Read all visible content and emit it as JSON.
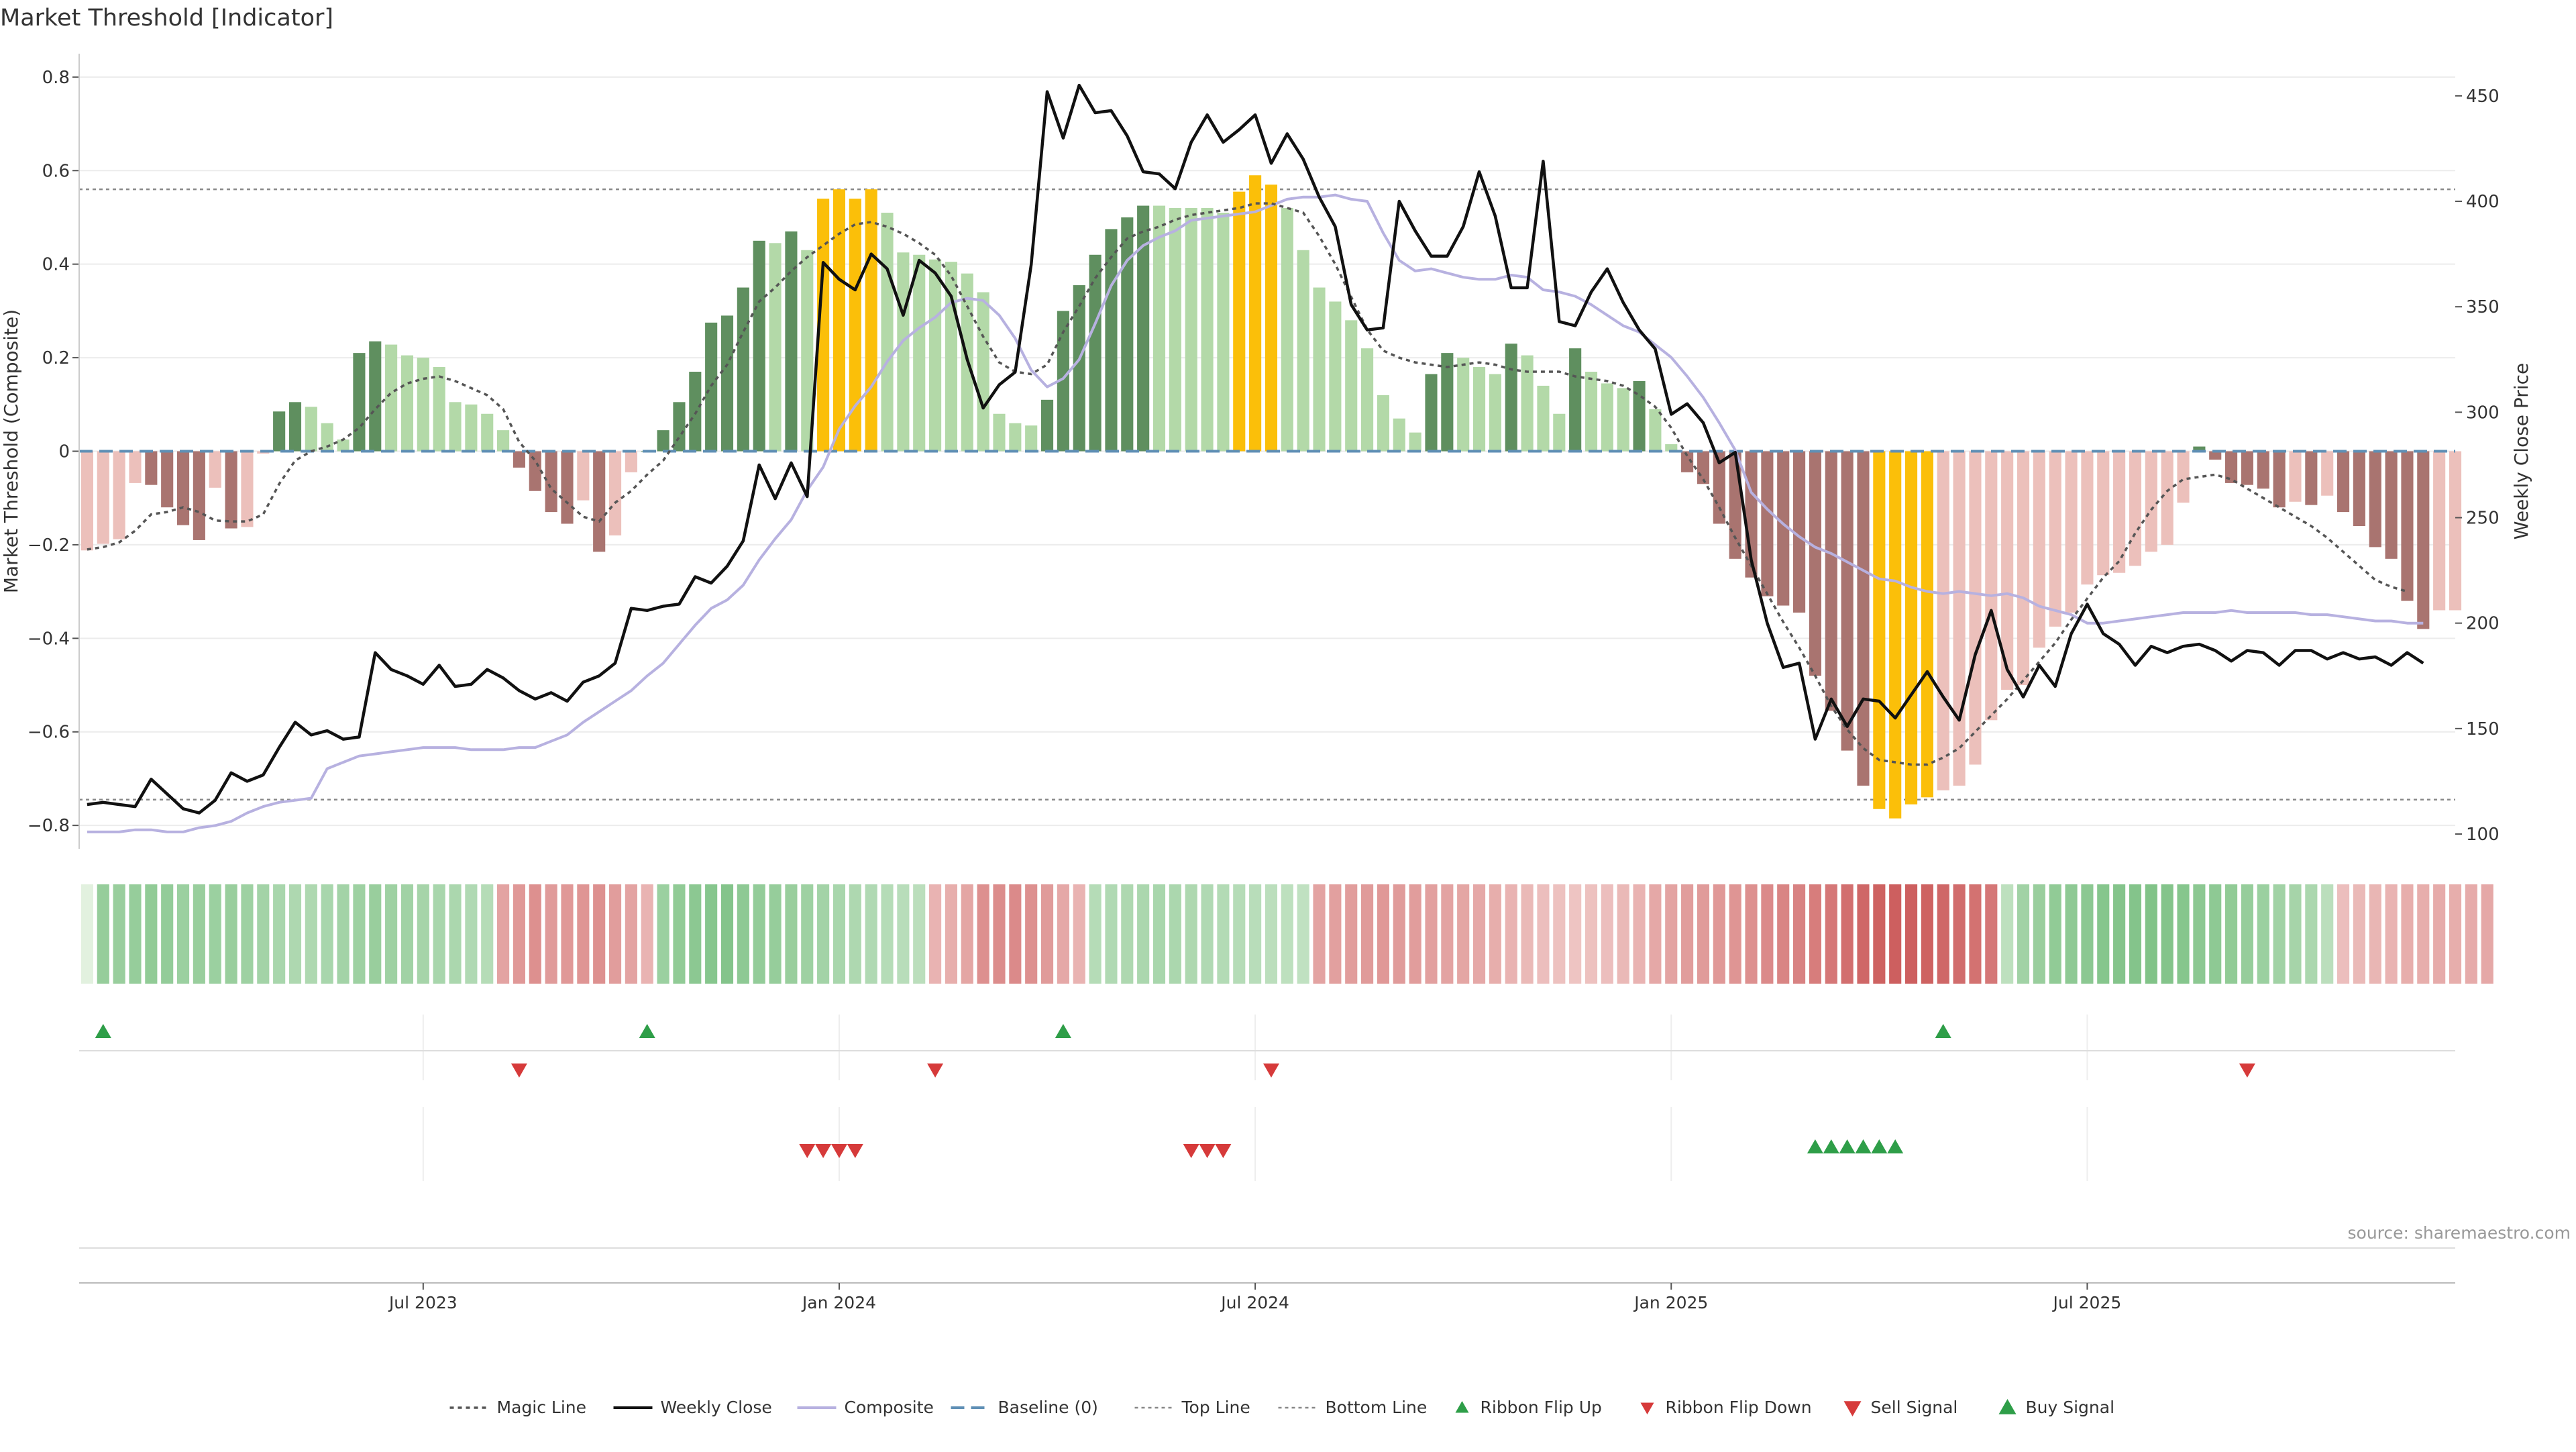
{
  "chart_data": {
    "type": "bar",
    "title": "Market Threshold [Indicator]",
    "ylabel_left": "Market Threshold (Composite)",
    "ylabel_right": "Weekly Close Price",
    "source": "source: sharemaestro.com",
    "ylim_left": [
      -0.85,
      0.85
    ],
    "ylim_right": [
      93,
      470
    ],
    "yticks_left": [
      {
        "v": 0.8,
        "label": "0.8"
      },
      {
        "v": 0.6,
        "label": "0.6"
      },
      {
        "v": 0.4,
        "label": "0.4"
      },
      {
        "v": 0.2,
        "label": "0.2"
      },
      {
        "v": 0,
        "label": "0"
      },
      {
        "v": -0.2,
        "label": "−0.2"
      },
      {
        "v": -0.4,
        "label": "−0.4"
      },
      {
        "v": -0.6,
        "label": "−0.6"
      },
      {
        "v": -0.8,
        "label": "−0.8"
      }
    ],
    "yticks_right": [
      {
        "v": 450,
        "label": "450"
      },
      {
        "v": 400,
        "label": "400"
      },
      {
        "v": 350,
        "label": "350"
      },
      {
        "v": 300,
        "label": "300"
      },
      {
        "v": 250,
        "label": "250"
      },
      {
        "v": 200,
        "label": "200"
      },
      {
        "v": 150,
        "label": "150"
      },
      {
        "v": 100,
        "label": "100"
      }
    ],
    "xticks": [
      {
        "i": 21,
        "label": "Jul 2023"
      },
      {
        "i": 47,
        "label": "Jan 2024"
      },
      {
        "i": 73,
        "label": "Jul 2024"
      },
      {
        "i": 99,
        "label": "Jan 2025"
      },
      {
        "i": 125,
        "label": "Jul 2025"
      }
    ],
    "top_line": 0.56,
    "bottom_line": -0.745,
    "composite": [
      -0.212,
      -0.198,
      -0.188,
      -0.068,
      -0.072,
      -0.12,
      -0.158,
      -0.19,
      -0.078,
      -0.165,
      -0.162,
      -0.005,
      0.085,
      0.105,
      0.095,
      0.06,
      0.025,
      0.21,
      0.235,
      0.228,
      0.205,
      0.2,
      0.18,
      0.105,
      0.1,
      0.08,
      0.045,
      -0.035,
      -0.085,
      -0.13,
      -0.155,
      -0.105,
      -0.215,
      -0.18,
      -0.045,
      0.0,
      0.045,
      0.105,
      0.17,
      0.275,
      0.29,
      0.35,
      0.45,
      0.445,
      0.47,
      0.43,
      0.54,
      0.56,
      0.54,
      0.56,
      0.51,
      0.425,
      0.42,
      0.41,
      0.405,
      0.38,
      0.34,
      0.08,
      0.06,
      0.055,
      0.11,
      0.3,
      0.355,
      0.42,
      0.475,
      0.5,
      0.525,
      0.525,
      0.52,
      0.52,
      0.52,
      0.51,
      0.555,
      0.59,
      0.57,
      0.52,
      0.43,
      0.35,
      0.32,
      0.28,
      0.22,
      0.12,
      0.07,
      0.04,
      0.165,
      0.21,
      0.2,
      0.18,
      0.165,
      0.23,
      0.205,
      0.14,
      0.08,
      0.22,
      0.17,
      0.145,
      0.135,
      0.15,
      0.09,
      0.015,
      -0.045,
      -0.07,
      -0.155,
      -0.23,
      -0.27,
      -0.31,
      -0.33,
      -0.345,
      -0.48,
      -0.555,
      -0.64,
      -0.715,
      -0.765,
      -0.785,
      -0.755,
      -0.74,
      -0.725,
      -0.715,
      -0.67,
      -0.575,
      -0.51,
      -0.5,
      -0.42,
      -0.375,
      -0.345,
      -0.285,
      -0.265,
      -0.26,
      -0.245,
      -0.215,
      -0.2,
      -0.11,
      0.01,
      -0.018,
      -0.068,
      -0.072,
      -0.08,
      -0.12,
      -0.108,
      -0.115,
      -0.095,
      -0.13,
      -0.16,
      -0.205,
      -0.23,
      -0.32,
      -0.38,
      -0.34,
      -0.34
    ],
    "magic_line": [
      -0.21,
      -0.205,
      -0.195,
      -0.17,
      -0.135,
      -0.13,
      -0.12,
      -0.13,
      -0.148,
      -0.15,
      -0.15,
      -0.135,
      -0.07,
      -0.02,
      0.0,
      0.01,
      0.025,
      0.05,
      0.09,
      0.125,
      0.145,
      0.155,
      0.16,
      0.15,
      0.135,
      0.12,
      0.09,
      0.02,
      -0.02,
      -0.08,
      -0.11,
      -0.14,
      -0.15,
      -0.11,
      -0.085,
      -0.05,
      -0.02,
      0.03,
      0.08,
      0.14,
      0.185,
      0.255,
      0.32,
      0.35,
      0.385,
      0.415,
      0.44,
      0.465,
      0.485,
      0.49,
      0.48,
      0.465,
      0.445,
      0.42,
      0.375,
      0.31,
      0.245,
      0.19,
      0.17,
      0.165,
      0.185,
      0.255,
      0.31,
      0.37,
      0.415,
      0.455,
      0.47,
      0.48,
      0.495,
      0.505,
      0.51,
      0.515,
      0.52,
      0.53,
      0.53,
      0.52,
      0.51,
      0.46,
      0.4,
      0.33,
      0.26,
      0.215,
      0.2,
      0.19,
      0.185,
      0.18,
      0.185,
      0.19,
      0.185,
      0.175,
      0.17,
      0.17,
      0.17,
      0.16,
      0.155,
      0.15,
      0.14,
      0.12,
      0.095,
      0.05,
      -0.01,
      -0.06,
      -0.12,
      -0.185,
      -0.245,
      -0.305,
      -0.365,
      -0.42,
      -0.48,
      -0.545,
      -0.595,
      -0.635,
      -0.66,
      -0.665,
      -0.67,
      -0.67,
      -0.655,
      -0.635,
      -0.6,
      -0.565,
      -0.53,
      -0.49,
      -0.45,
      -0.41,
      -0.36,
      -0.315,
      -0.27,
      -0.235,
      -0.175,
      -0.125,
      -0.085,
      -0.06,
      -0.055,
      -0.05,
      -0.06,
      -0.08,
      -0.1,
      -0.12,
      -0.14,
      -0.16,
      -0.185,
      -0.215,
      -0.245,
      -0.275,
      -0.29,
      -0.3
    ],
    "composite_line": [
      101,
      101,
      101,
      102,
      102,
      101,
      101,
      103,
      104,
      106,
      110,
      113,
      115,
      116,
      117,
      131,
      134,
      137,
      138,
      139,
      140,
      141,
      141,
      141,
      140,
      140,
      140,
      141,
      141,
      144,
      147,
      153,
      158,
      163,
      168,
      175,
      181,
      190,
      199,
      207,
      211,
      218,
      230,
      240,
      249,
      263,
      274,
      292,
      303,
      312,
      324,
      334,
      340,
      345,
      352,
      354,
      353,
      346,
      335,
      320,
      312,
      316,
      325,
      342,
      360,
      372,
      379,
      383,
      386,
      391,
      392,
      393,
      394,
      395,
      398,
      401,
      402,
      402,
      403,
      401,
      400,
      385,
      372,
      367,
      368,
      366,
      364,
      363,
      363,
      365,
      364,
      358,
      357,
      355,
      351,
      346,
      341,
      338,
      332,
      326,
      317,
      307,
      295,
      282,
      262,
      254,
      247,
      241,
      236,
      233,
      229,
      225,
      221,
      220,
      217,
      215,
      214,
      215,
      214,
      213,
      214,
      212,
      208,
      206,
      204,
      200,
      200,
      201,
      202,
      203,
      204,
      205,
      205,
      205,
      206,
      205,
      205,
      205,
      205,
      204,
      204,
      203,
      202,
      201,
      201,
      200,
      200
    ],
    "weekly_close": [
      114,
      115,
      114,
      113,
      126,
      119,
      112,
      110,
      116,
      129,
      125,
      128,
      141,
      153,
      147,
      149,
      145,
      146,
      186,
      178,
      175,
      171,
      180,
      170,
      171,
      178,
      174,
      168,
      164,
      167,
      163,
      172,
      175,
      181,
      207,
      206,
      208,
      209,
      222,
      219,
      227,
      239,
      275,
      259,
      276,
      260,
      371,
      363,
      358,
      375,
      368,
      346,
      372,
      366,
      355,
      325,
      302,
      313,
      319,
      370,
      452,
      430,
      455,
      442,
      443,
      431,
      414,
      413,
      406,
      428,
      441,
      428,
      434,
      441,
      418,
      432,
      420,
      402,
      388,
      351,
      339,
      340,
      400,
      386,
      374,
      374,
      388,
      414,
      393,
      359,
      359,
      419,
      343,
      341,
      357,
      368,
      352,
      339,
      330,
      299,
      304,
      295,
      276,
      281,
      230,
      200,
      179,
      181,
      145,
      164,
      151,
      164,
      163,
      155,
      166,
      177,
      165,
      154,
      185,
      206,
      178,
      165,
      180,
      170,
      195,
      209,
      195,
      190,
      180,
      189,
      186,
      189,
      190,
      187,
      182,
      187,
      186,
      180,
      187,
      187,
      183,
      186,
      183,
      184,
      180,
      186,
      181
    ],
    "ribbon": [
      0.0,
      0.58,
      0.56,
      0.58,
      0.62,
      0.6,
      0.54,
      0.56,
      0.54,
      0.56,
      0.52,
      0.48,
      0.44,
      0.4,
      0.4,
      0.44,
      0.48,
      0.52,
      0.56,
      0.52,
      0.5,
      0.46,
      0.44,
      0.42,
      0.38,
      0.34,
      -0.42,
      -0.5,
      -0.56,
      -0.48,
      -0.5,
      -0.52,
      -0.56,
      -0.46,
      -0.42,
      -0.3,
      0.54,
      0.62,
      0.66,
      0.7,
      0.72,
      0.64,
      0.6,
      0.58,
      0.56,
      0.52,
      0.48,
      0.44,
      0.4,
      0.38,
      0.34,
      0.32,
      0.3,
      -0.3,
      -0.34,
      -0.4,
      -0.56,
      -0.58,
      -0.6,
      -0.56,
      -0.48,
      -0.38,
      -0.3,
      0.34,
      0.38,
      0.4,
      0.42,
      0.44,
      0.42,
      0.4,
      0.38,
      0.36,
      0.34,
      0.32,
      0.3,
      0.28,
      0.26,
      -0.42,
      -0.44,
      -0.46,
      -0.48,
      -0.5,
      -0.48,
      -0.46,
      -0.44,
      -0.42,
      -0.4,
      -0.38,
      -0.34,
      -0.3,
      -0.26,
      -0.22,
      -0.2,
      -0.18,
      -0.2,
      -0.22,
      -0.26,
      -0.3,
      -0.38,
      -0.42,
      -0.46,
      -0.48,
      -0.5,
      -0.52,
      -0.56,
      -0.6,
      -0.64,
      -0.66,
      -0.7,
      -0.74,
      -0.8,
      -0.86,
      -0.9,
      -0.92,
      -0.92,
      -0.9,
      -0.86,
      -0.82,
      -0.78,
      -0.74,
      0.28,
      0.5,
      0.56,
      0.62,
      0.64,
      0.66,
      0.7,
      0.72,
      0.72,
      0.74,
      0.72,
      0.7,
      0.66,
      0.64,
      0.62,
      0.58,
      0.54,
      0.5,
      0.46,
      0.42,
      0.3,
      -0.22,
      -0.26,
      -0.28,
      -0.3,
      -0.34,
      -0.34,
      -0.36,
      -0.34,
      -0.36,
      -0.38
    ],
    "ribbon_flip_up": [
      1,
      35,
      61,
      116
    ],
    "ribbon_flip_down": [
      27,
      53,
      74,
      135
    ],
    "sell_signal": [
      45,
      46,
      47,
      48,
      69,
      70,
      71
    ],
    "buy_signal": [
      108,
      109,
      110,
      111,
      112,
      113
    ],
    "legend": [
      {
        "key": "magic",
        "label": "Magic Line"
      },
      {
        "key": "close",
        "label": "Weekly Close"
      },
      {
        "key": "composite",
        "label": "Composite"
      },
      {
        "key": "baseline",
        "label": "Baseline (0)"
      },
      {
        "key": "top",
        "label": "Top Line"
      },
      {
        "key": "bottom",
        "label": "Bottom Line"
      },
      {
        "key": "flipup",
        "label": "Ribbon Flip Up"
      },
      {
        "key": "flipdown",
        "label": "Ribbon Flip Down"
      },
      {
        "key": "sell",
        "label": "Sell Signal"
      },
      {
        "key": "buy",
        "label": "Buy Signal"
      }
    ],
    "colors": {
      "bull_strong": "#5f8f5f",
      "bull_light": "#b3d9a8",
      "bear_strong": "#a97470",
      "bear_light": "#ecc0bb",
      "extreme": "#fbbf09",
      "magic": "#555555",
      "close": "#111111",
      "composite_line": "#b7b1e0",
      "baseline": "#5f8fb5",
      "thresh": "#888888",
      "up_marker": "#2e9e48",
      "down_marker": "#d63a3a"
    }
  }
}
